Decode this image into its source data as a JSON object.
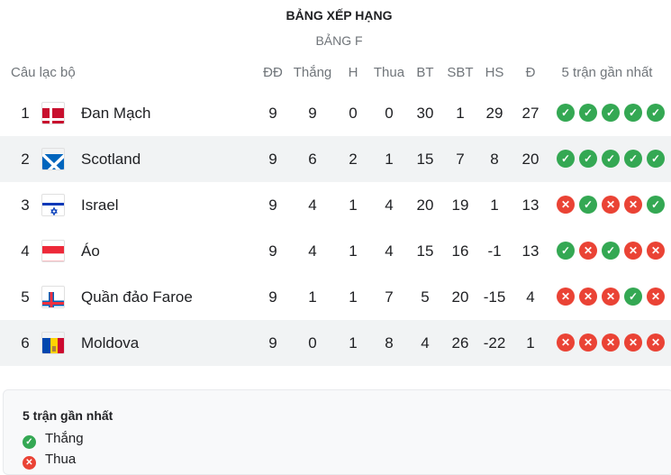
{
  "title": "BẢNG XẾP HẠNG",
  "subtitle": "BẢNG F",
  "columns": {
    "club": "Câu lạc bộ",
    "played": "ĐĐ",
    "won": "Thắng",
    "drawn": "H",
    "lost": "Thua",
    "gf": "BT",
    "ga": "SBT",
    "gd": "HS",
    "pts": "Đ",
    "form": "5 trận gần nhất"
  },
  "rows": [
    {
      "rank": "1",
      "team": "Đan Mạch",
      "flag": "denmark",
      "played": "9",
      "won": "9",
      "drawn": "0",
      "lost": "0",
      "gf": "30",
      "ga": "1",
      "gd": "29",
      "pts": "27",
      "form": [
        "W",
        "W",
        "W",
        "W",
        "W"
      ]
    },
    {
      "rank": "2",
      "team": "Scotland",
      "flag": "scotland",
      "played": "9",
      "won": "6",
      "drawn": "2",
      "lost": "1",
      "gf": "15",
      "ga": "7",
      "gd": "8",
      "pts": "20",
      "form": [
        "W",
        "W",
        "W",
        "W",
        "W"
      ]
    },
    {
      "rank": "3",
      "team": "Israel",
      "flag": "israel",
      "played": "9",
      "won": "4",
      "drawn": "1",
      "lost": "4",
      "gf": "20",
      "ga": "19",
      "gd": "1",
      "pts": "13",
      "form": [
        "L",
        "W",
        "L",
        "L",
        "W"
      ]
    },
    {
      "rank": "4",
      "team": "Áo",
      "flag": "austria",
      "played": "9",
      "won": "4",
      "drawn": "1",
      "lost": "4",
      "gf": "15",
      "ga": "16",
      "gd": "-1",
      "pts": "13",
      "form": [
        "W",
        "L",
        "W",
        "L",
        "L"
      ]
    },
    {
      "rank": "5",
      "team": "Quần đảo Faroe",
      "flag": "faroe",
      "played": "9",
      "won": "1",
      "drawn": "1",
      "lost": "7",
      "gf": "5",
      "ga": "20",
      "gd": "-15",
      "pts": "4",
      "form": [
        "L",
        "L",
        "L",
        "W",
        "L"
      ]
    },
    {
      "rank": "6",
      "team": "Moldova",
      "flag": "moldova",
      "played": "9",
      "won": "0",
      "drawn": "1",
      "lost": "8",
      "gf": "4",
      "ga": "26",
      "gd": "-22",
      "pts": "1",
      "form": [
        "L",
        "L",
        "L",
        "L",
        "L"
      ]
    }
  ],
  "legend": {
    "title": "5 trận gần nhất",
    "win": "Thắng",
    "loss": "Thua"
  },
  "colors": {
    "win": "#34a853",
    "loss": "#ea4335"
  }
}
